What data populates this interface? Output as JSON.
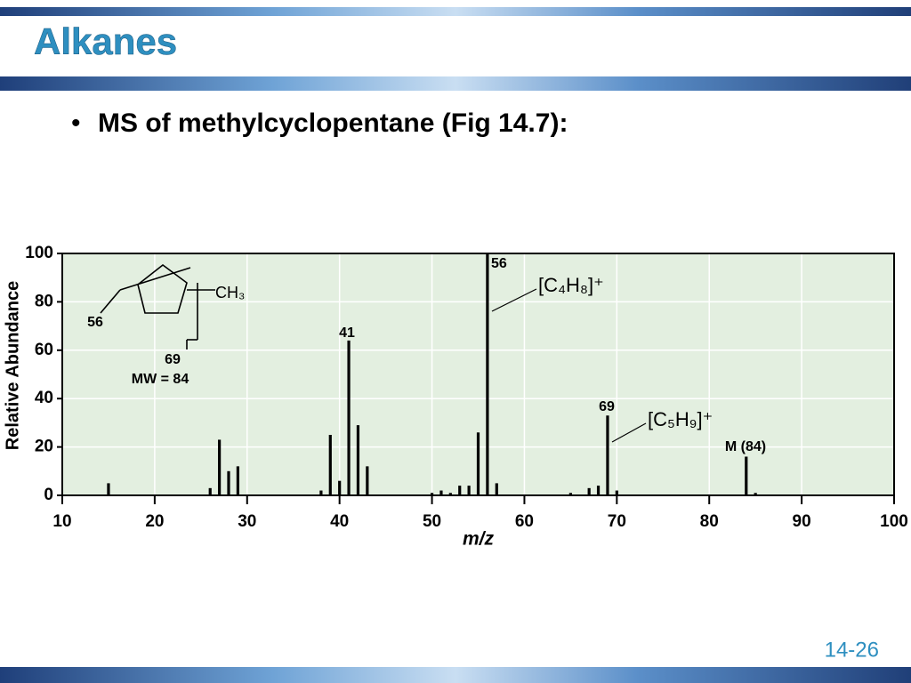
{
  "title": "Alkanes",
  "bullet": "MS of methylcyclopentane (Fig 14.7):",
  "slide_number": "14-26",
  "chart_data": {
    "type": "bar",
    "xlabel": "m/z",
    "ylabel": "Relative Abundance",
    "x": [
      15,
      26,
      27,
      28,
      29,
      38,
      39,
      40,
      41,
      42,
      43,
      50,
      51,
      52,
      53,
      54,
      55,
      56,
      57,
      65,
      67,
      68,
      69,
      70,
      84,
      85
    ],
    "values": [
      5,
      3,
      23,
      10,
      12,
      2,
      25,
      6,
      64,
      29,
      12,
      1,
      2,
      1,
      4,
      4,
      26,
      100,
      5,
      1,
      3,
      4,
      33,
      2,
      16,
      1
    ],
    "color": "#000000",
    "xlim": [
      10,
      100
    ],
    "xticks": [
      10,
      20,
      30,
      40,
      50,
      60,
      70,
      80,
      90,
      100
    ],
    "ylim": [
      0,
      100
    ],
    "yticks": [
      0,
      20,
      40,
      60,
      80,
      100
    ],
    "grid": true,
    "annotations": [
      "56",
      "41",
      "69",
      "M (84)",
      "[C₄H₈]⁺",
      "[C₅H₉]⁺"
    ],
    "structure_labels": [
      "CH₃",
      "56",
      "69",
      "MW = 84"
    ]
  }
}
